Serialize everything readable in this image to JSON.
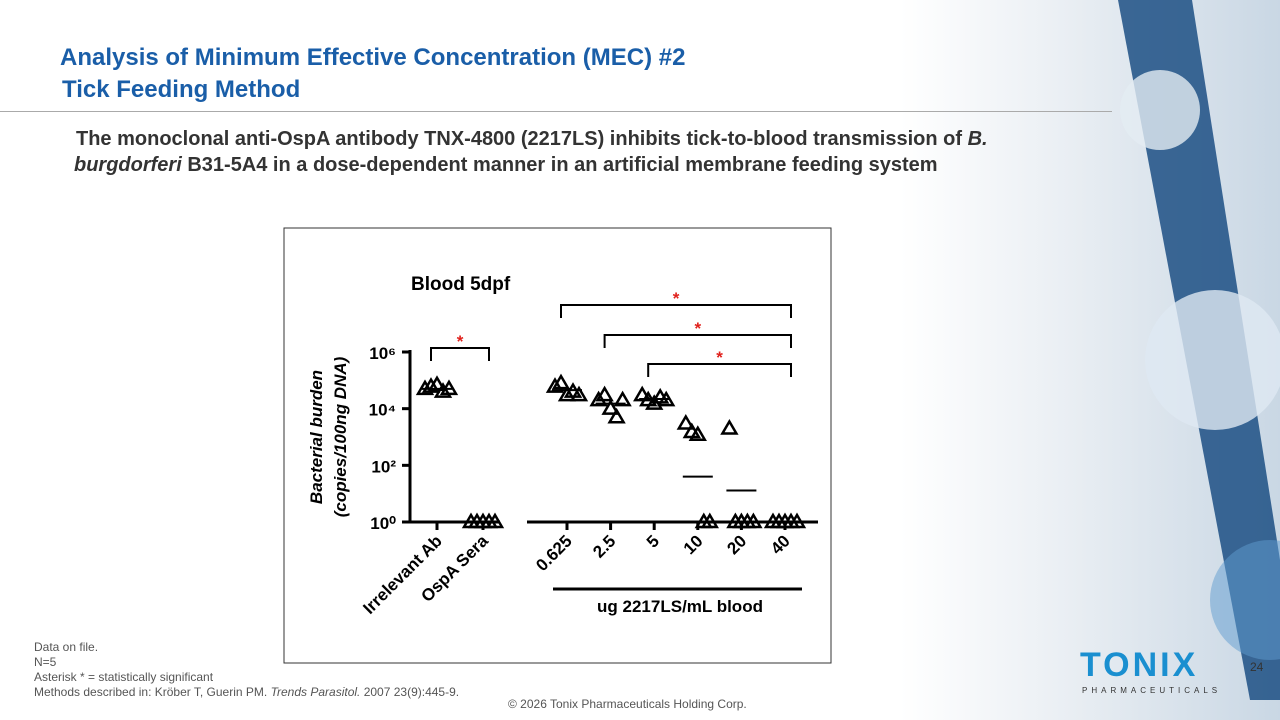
{
  "header": {
    "title_line1": "Analysis of Minimum Effective Concentration (MEC) #2",
    "title_line2": "Tick Feeding Method"
  },
  "body": {
    "parts": [
      "The monoclonal anti-OspA antibody TNX-4800 (2217LS) inhibits tick-to-blood transmission of ",
      "B. burgdorferi",
      " B31-5A4 in a dose-dependent manner in an artificial membrane feeding system"
    ]
  },
  "chart_data": {
    "type": "scatter",
    "title": "Blood 5dpf",
    "y_label_lines": [
      "Bacterial burden",
      "(copies/100ng  DNA)"
    ],
    "categories": [
      "Irrelevant Ab",
      "OspA Sera",
      "0.625",
      "2.5",
      "5",
      "10",
      "20",
      "40"
    ],
    "group_label": "ug 2217LS/mL blood",
    "values": [
      [
        50000,
        60000,
        70000,
        40000,
        50000
      ],
      [
        1,
        1,
        1,
        1,
        1
      ],
      [
        60000,
        80000,
        30000,
        40000,
        30000
      ],
      [
        20000,
        30000,
        10000,
        5000,
        20000
      ],
      [
        30000,
        20000,
        15000,
        25000,
        20000
      ],
      [
        3000,
        1500,
        1200,
        1,
        1
      ],
      [
        2000,
        1,
        1,
        1,
        1
      ],
      [
        1,
        1,
        1,
        1,
        1
      ]
    ],
    "means": [
      50000,
      1,
      45000,
      15000,
      22000,
      40,
      13,
      1
    ],
    "log_scale": true,
    "ylim": [
      1,
      1000000
    ],
    "yticks": [
      {
        "value": 1,
        "label": "10⁰"
      },
      {
        "value": 100,
        "label": "10²"
      },
      {
        "value": 10000,
        "label": "10⁴"
      },
      {
        "value": 1000000,
        "label": "10⁶"
      }
    ],
    "color": "#000000",
    "significance": [
      {
        "from": "Irrelevant Ab",
        "to": "OspA Sera",
        "label": "*"
      },
      {
        "from": "0.625",
        "to": "40",
        "label": "*"
      },
      {
        "from": "2.5",
        "to": "40",
        "label": "*"
      },
      {
        "from": "5",
        "to": "40",
        "label": "*"
      }
    ],
    "significance_color": "#e0201b"
  },
  "footnotes": {
    "line1": "Data on file.",
    "line2": "N=5",
    "line3": "Asterisk * = statistically significant",
    "line4_parts": [
      "Methods described in: Kröber T, Guerin PM. ",
      "Trends Parasitol.",
      " 2007 23(9):445-9."
    ]
  },
  "footer": {
    "copyright": "© 2026 Tonix Pharmaceuticals Holding Corp.",
    "page": "24"
  },
  "logo": {
    "name": "TONIX",
    "sub": "PHARMACEUTICALS"
  }
}
